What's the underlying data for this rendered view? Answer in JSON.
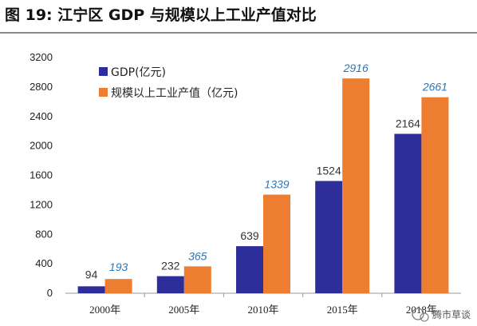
{
  "figure_title": "图 19:  江宁区 GDP 与规模以上工业产值对比",
  "watermark": "腾市草谈",
  "colors": {
    "series_a": "#2e2e9a",
    "series_b": "#ed7d31",
    "label_b": "#2e75b6"
  },
  "chart_data": {
    "type": "bar",
    "categories": [
      "2000年",
      "2005年",
      "2010年",
      "2015年",
      "2018年"
    ],
    "series": [
      {
        "name": "GDP(亿元)",
        "values": [
          94,
          232,
          639,
          1524,
          2164
        ]
      },
      {
        "name": "规模以上工业产值（亿元)",
        "values": [
          193,
          365,
          1339,
          2916,
          2661
        ]
      }
    ],
    "ylim": [
      0,
      3200
    ],
    "yticks": [
      0,
      400,
      800,
      1200,
      1600,
      2000,
      2400,
      2800,
      3200
    ],
    "grid": false,
    "legend_position": "top-left"
  }
}
